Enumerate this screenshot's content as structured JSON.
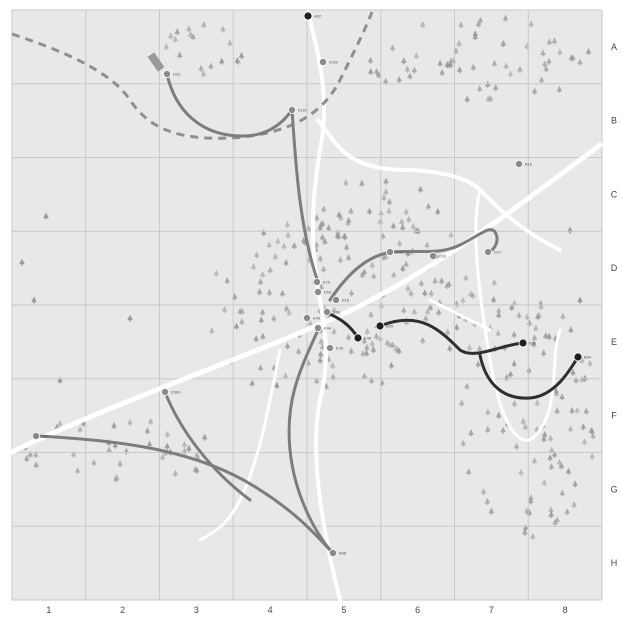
{
  "map": {
    "columns": [
      "1",
      "2",
      "3",
      "4",
      "5",
      "6",
      "7",
      "8"
    ],
    "rows": [
      "A",
      "B",
      "C",
      "D",
      "E",
      "F",
      "G",
      "H"
    ],
    "colors": {
      "background": "#e8e8e8",
      "grid": "#c9c9c9",
      "road": "#ffffff",
      "forest": "#9a9a9a",
      "route_gray": "#7d7d7d",
      "route_dark": "#2e2e2e",
      "dashed_border": "#8f8f8f",
      "node": "#8a8a8a",
      "node_dark": "#1f1f1f"
    },
    "nodes": [
      {
        "id": "n-top",
        "label": "A02",
        "dark": true
      },
      {
        "id": "n-a",
        "label": "0153",
        "dark": false
      },
      {
        "id": "n-start",
        "label": "D23",
        "dark": false
      },
      {
        "id": "n-b",
        "label": "0116",
        "dark": false
      },
      {
        "id": "n-c",
        "label": "B16",
        "dark": false
      },
      {
        "id": "n-d1",
        "label": "D16",
        "dark": false
      },
      {
        "id": "n-d2",
        "label": "D16",
        "dark": false
      },
      {
        "id": "n-d3",
        "label": "D17",
        "dark": false
      },
      {
        "id": "n-e1",
        "label": "E75",
        "dark": false
      },
      {
        "id": "n-e2",
        "label": "E16",
        "dark": false
      },
      {
        "id": "n-e3",
        "label": "E53",
        "dark": false
      },
      {
        "id": "n-e4",
        "label": "E68",
        "dark": false
      },
      {
        "id": "n-e5",
        "label": "E44",
        "dark": false
      },
      {
        "id": "n-e6",
        "label": "E43",
        "dark": false
      },
      {
        "id": "n-e7",
        "label": "E48",
        "dark": true
      },
      {
        "id": "n-e8",
        "label": "B95",
        "dark": true
      },
      {
        "id": "n-e9",
        "label": "B96",
        "dark": true
      },
      {
        "id": "n-e10",
        "label": "B94",
        "dark": true
      },
      {
        "id": "n-e11",
        "label": "E49",
        "dark": false
      },
      {
        "id": "n-f1",
        "label": "D364",
        "dark": false
      },
      {
        "id": "n-west",
        "label": "B11",
        "dark": false
      },
      {
        "id": "n-south",
        "label": "B48",
        "dark": false
      }
    ]
  }
}
